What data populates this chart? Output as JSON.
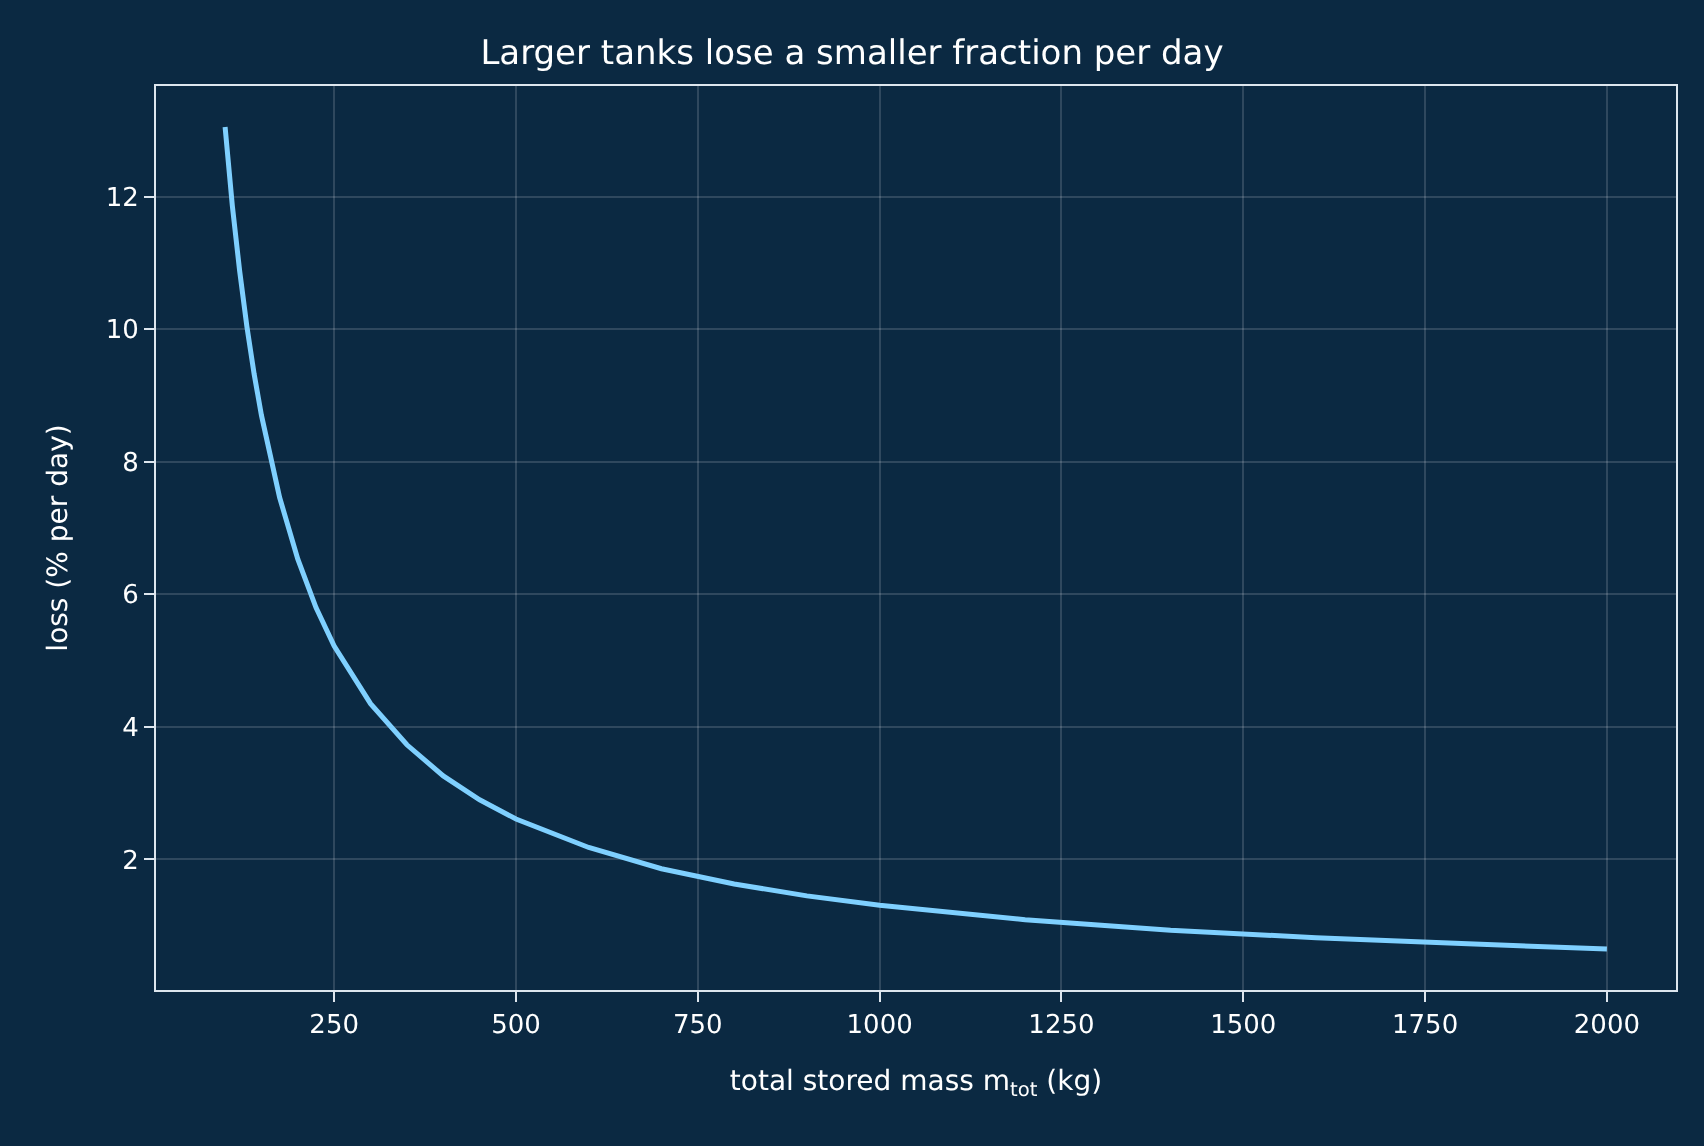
{
  "chart_data": {
    "type": "line",
    "title": "Larger tanks lose a smaller fraction per day",
    "xlabel": "total stored mass m$_{tot}$ (kg)",
    "ylabel": "loss (% per day)",
    "x": [
      100,
      110,
      120,
      130,
      140,
      150,
      175,
      200,
      225,
      250,
      300,
      350,
      400,
      450,
      500,
      600,
      700,
      800,
      900,
      1000,
      1200,
      1400,
      1600,
      1800,
      2000
    ],
    "series": [
      {
        "color": "#7fd0ff",
        "values": [
          13.05,
          11.86,
          10.88,
          10.04,
          9.32,
          8.7,
          7.46,
          6.53,
          5.8,
          5.22,
          4.35,
          3.73,
          3.26,
          2.9,
          2.61,
          2.18,
          1.86,
          1.63,
          1.45,
          1.31,
          1.09,
          0.93,
          0.82,
          0.73,
          0.65
        ]
      }
    ],
    "xlim": [
      5,
      2095
    ],
    "xticks": [
      250,
      500,
      750,
      1000,
      1250,
      1500,
      1750,
      2000
    ],
    "ylim": [
      0.03,
      13.67
    ],
    "yticks": [
      2,
      4,
      6,
      8,
      10,
      12
    ],
    "grid": true,
    "marker": "none",
    "line_style": "solid"
  }
}
